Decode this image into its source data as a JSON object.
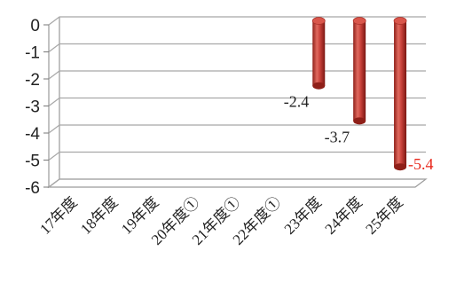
{
  "chart_data": {
    "type": "bar",
    "style": "3d-cylinder",
    "categories": [
      "17年度",
      "18年度",
      "19年度",
      "20年度①",
      "21年度①",
      "22年度①",
      "23年度",
      "24年度",
      "25年度"
    ],
    "values": [
      null,
      null,
      null,
      null,
      null,
      null,
      -2.4,
      -3.7,
      -5.4
    ],
    "data_labels": [
      "",
      "",
      "",
      "",
      "",
      "",
      "-2.4",
      "-3.7",
      "-5.4"
    ],
    "highlight_label_index": 8,
    "highlight_color": "#e8261a",
    "bar_color": "#c8413a",
    "yticks": [
      "0",
      "-1",
      "-2",
      "-3",
      "-4",
      "-5",
      "-6"
    ],
    "ytick_values": [
      0,
      -1,
      -2,
      -3,
      -4,
      -5,
      -6
    ],
    "ylim": [
      -6,
      0
    ],
    "grid": true,
    "legend": false,
    "title": "",
    "xlabel": "",
    "ylabel": ""
  }
}
